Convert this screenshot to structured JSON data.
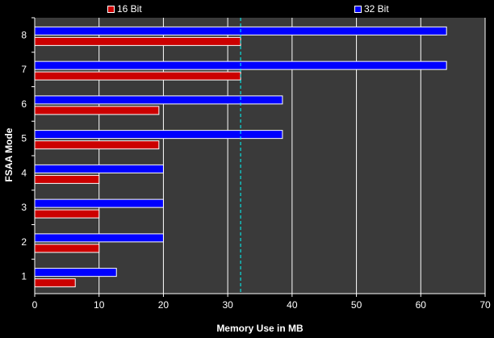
{
  "chart_data": {
    "type": "bar",
    "orientation": "horizontal",
    "categories": [
      "1",
      "2",
      "3",
      "4",
      "5",
      "6",
      "7",
      "8"
    ],
    "series": [
      {
        "name": "16 Bit",
        "color": "#cc0000",
        "values": [
          6.3,
          10,
          10,
          10,
          19.3,
          19.3,
          32,
          32
        ]
      },
      {
        "name": "32 Bit",
        "color": "#0000ff",
        "values": [
          12.7,
          20,
          20,
          20,
          38.5,
          38.5,
          64,
          64
        ]
      }
    ],
    "xlabel": "Memory Use in MB",
    "ylabel": "FSAA Mode",
    "xlim": [
      0,
      70
    ],
    "xticks": [
      "0",
      "10",
      "20",
      "30",
      "40",
      "50",
      "60",
      "70"
    ],
    "reference_line": {
      "value": 32,
      "color": "#00ffff",
      "style": "dashed"
    },
    "grid": true,
    "legend_position": "top",
    "plot_background": "#3a3a3a"
  }
}
